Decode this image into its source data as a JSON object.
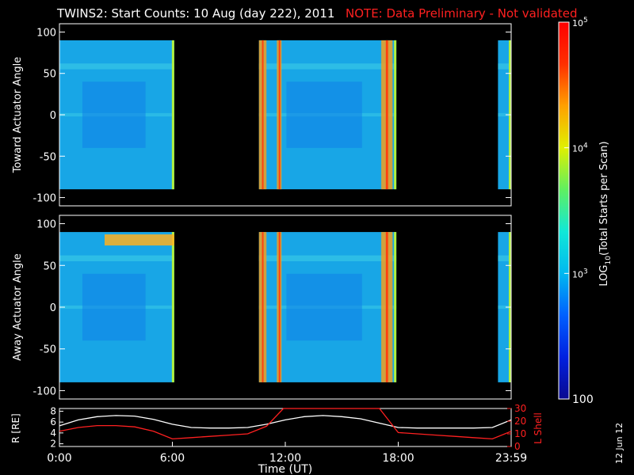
{
  "header": {
    "title": "TWINS2: Start Counts: 10 Aug (day 222), 2011",
    "note": "NOTE: Data Preliminary - Not validated"
  },
  "side_date": "12 Jun 12",
  "chart_data": [
    {
      "type": "heatmap",
      "ylabel": "Toward Actuator Angle",
      "ylim": [
        -110,
        110
      ],
      "yticks": [
        100,
        50,
        0,
        -50,
        -100
      ],
      "data_y_range": [
        -90,
        90
      ],
      "xlim_hours": [
        0,
        24
      ],
      "data_blocks_hours": [
        [
          0.0,
          6.1
        ],
        [
          10.6,
          17.9
        ],
        [
          23.3,
          24.0
        ]
      ],
      "bright_strips_hours": [
        [
          10.6,
          11.0
        ],
        [
          11.55,
          11.8
        ],
        [
          17.1,
          17.7
        ]
      ]
    },
    {
      "type": "heatmap",
      "ylabel": "Away Actuator Angle",
      "ylim": [
        -110,
        110
      ],
      "yticks": [
        100,
        50,
        0,
        -50,
        -100
      ],
      "data_y_range": [
        -90,
        90
      ],
      "xlim_hours": [
        0,
        24
      ],
      "data_blocks_hours": [
        [
          0.0,
          6.1
        ],
        [
          10.6,
          17.9
        ],
        [
          23.3,
          24.0
        ]
      ],
      "bright_strips_hours": [
        [
          10.6,
          11.0
        ],
        [
          11.55,
          11.8
        ],
        [
          17.1,
          17.7
        ]
      ]
    },
    {
      "type": "line",
      "xlabel": "Time (UT)",
      "ylabel": "R [RE]",
      "ylabel_right": "L Shell",
      "xlim_hours": [
        0,
        24
      ],
      "xticks": [
        {
          "h": 0,
          "label": "0:00"
        },
        {
          "h": 6,
          "label": "6:00"
        },
        {
          "h": 12,
          "label": "12:00"
        },
        {
          "h": 18,
          "label": "18:00"
        },
        {
          "h": 24,
          "label": "23:59"
        }
      ],
      "ylim_left": [
        1.5,
        8.5
      ],
      "yticks_left": [
        "2",
        "4",
        "6",
        "8"
      ],
      "ylim_right": [
        0,
        30
      ],
      "yticks_right": [
        "0",
        "10",
        "20",
        "30"
      ],
      "series": [
        {
          "axis": "left",
          "color": "#ffffff",
          "x": [
            0,
            1,
            2,
            3,
            4,
            5,
            6,
            7,
            8,
            9,
            10,
            11,
            12,
            13,
            14,
            15,
            16,
            17,
            18,
            19,
            20,
            21,
            22,
            23,
            24
          ],
          "y": [
            5.3,
            6.4,
            7.0,
            7.2,
            7.1,
            6.5,
            5.6,
            5.0,
            4.9,
            4.9,
            5.0,
            5.6,
            6.4,
            7.0,
            7.2,
            7.0,
            6.6,
            5.8,
            5.0,
            4.9,
            4.9,
            4.9,
            4.9,
            5.0,
            6.4
          ]
        },
        {
          "axis": "right",
          "color": "#ff2020",
          "x": [
            0,
            1,
            2,
            3,
            4,
            5,
            6,
            7,
            8,
            9,
            10,
            11,
            11.9,
            17.0,
            18.0,
            19,
            20,
            21,
            22,
            23,
            24
          ],
          "y": [
            12,
            15,
            16.5,
            16.5,
            15.5,
            12,
            6,
            7,
            8,
            9,
            10,
            16,
            30,
            30,
            11,
            10,
            9,
            8,
            7,
            6,
            12
          ]
        }
      ]
    }
  ],
  "colorbar": {
    "label_prefix": "LOG",
    "label_sub": "10",
    "label_suffix": "(Total Starts per Scan)",
    "ticks": [
      {
        "base": "10",
        "exp": "5"
      },
      {
        "base": "10",
        "exp": "4"
      },
      {
        "base": "10",
        "exp": "3"
      },
      {
        "base": "100",
        "exp": ""
      }
    ],
    "colors": [
      "#0a0a90",
      "#0020e0",
      "#0060ff",
      "#00b8f0",
      "#10e8d8",
      "#60f060",
      "#e0f000",
      "#ffa000",
      "#ff3000",
      "#ff0000"
    ]
  }
}
